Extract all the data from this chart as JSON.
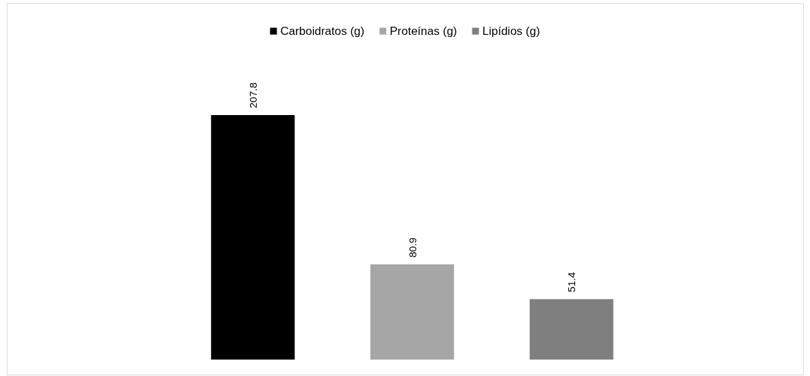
{
  "chart_data": {
    "type": "bar",
    "categories": [
      null,
      null,
      null
    ],
    "stacked": true,
    "series": [
      {
        "name": "Carboidratos (g)",
        "color": "#000000",
        "values": [
          207.8,
          null,
          null
        ]
      },
      {
        "name": "Proteínas (g)",
        "color": "#a6a6a6",
        "values": [
          null,
          80.9,
          null
        ]
      },
      {
        "name": "Lipídios (g)",
        "color": "#7f7f7f",
        "values": [
          null,
          null,
          51.4
        ]
      }
    ],
    "data_labels": true,
    "legend": "top",
    "grid": false
  }
}
